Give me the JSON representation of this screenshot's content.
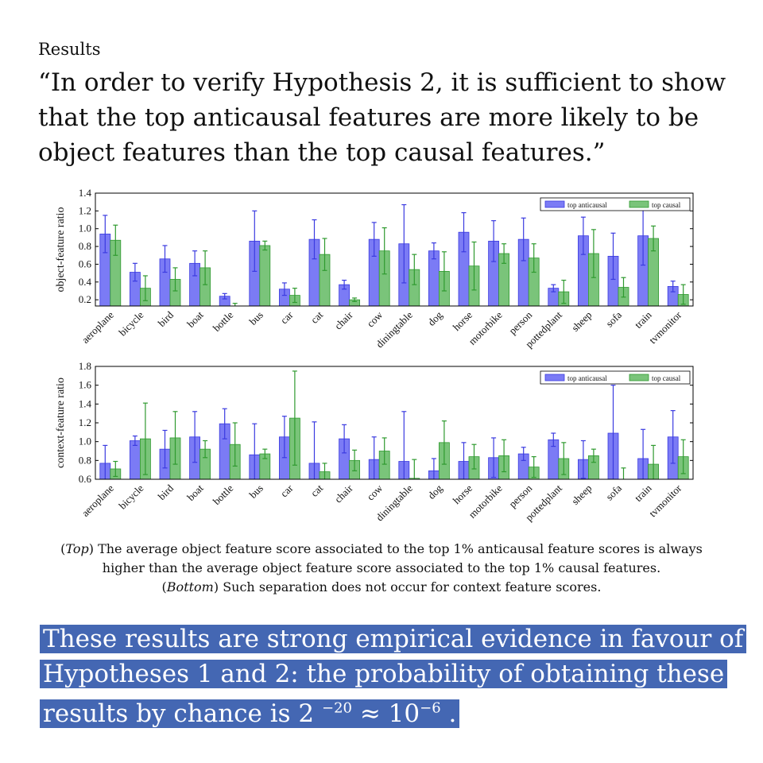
{
  "heading": "Results",
  "quote": [
    "“In order to verify Hypothesis 2, it is sufficient to show",
    "that the top anticausal features are more likely to be",
    "object features than the top causal features.”"
  ],
  "colors": {
    "anticausal": "#7b7bf5",
    "causal": "#7ac47a",
    "anticausal_edge": "#3b3be0",
    "causal_edge": "#2f9a2f",
    "highlight": "#4467b3"
  },
  "chart_data": [
    {
      "type": "bar",
      "ylabel": "object-feature ratio",
      "ylim": [
        0.13,
        1.4
      ],
      "yticks": [
        "1.4",
        "1.2",
        "1.0",
        "0.8",
        "0.6",
        "0.4",
        "0.2"
      ],
      "legend_position": "top-right",
      "categories": [
        "aeroplane",
        "bicycle",
        "bird",
        "boat",
        "bottle",
        "bus",
        "car",
        "cat",
        "chair",
        "cow",
        "diningtable",
        "dog",
        "horse",
        "motorbike",
        "person",
        "pottedplant",
        "sheep",
        "sofa",
        "train",
        "tvmonitor"
      ],
      "series": [
        {
          "name": "top anticausal",
          "values": [
            0.94,
            0.51,
            0.66,
            0.61,
            0.24,
            0.86,
            0.32,
            0.88,
            0.37,
            0.88,
            0.83,
            0.75,
            0.96,
            0.86,
            0.88,
            0.33,
            0.92,
            0.69,
            0.92,
            0.35
          ],
          "err": [
            0.21,
            0.1,
            0.15,
            0.14,
            0.03,
            0.34,
            0.07,
            0.22,
            0.05,
            0.19,
            0.44,
            0.09,
            0.22,
            0.23,
            0.24,
            0.04,
            0.21,
            0.26,
            0.33,
            0.06
          ]
        },
        {
          "name": "top causal",
          "values": [
            0.87,
            0.33,
            0.43,
            0.56,
            0.13,
            0.81,
            0.25,
            0.71,
            0.2,
            0.75,
            0.54,
            0.52,
            0.58,
            0.72,
            0.67,
            0.29,
            0.72,
            0.34,
            0.89,
            0.26
          ],
          "err": [
            0.17,
            0.14,
            0.13,
            0.19,
            0.03,
            0.05,
            0.08,
            0.18,
            0.02,
            0.26,
            0.17,
            0.22,
            0.27,
            0.11,
            0.16,
            0.13,
            0.27,
            0.11,
            0.14,
            0.11
          ]
        }
      ]
    },
    {
      "type": "bar",
      "ylabel": "context-feature ratio",
      "ylim": [
        0.6,
        1.8
      ],
      "yticks": [
        "1.8",
        "1.6",
        "1.4",
        "1.2",
        "1.0",
        "0.8",
        "0.6"
      ],
      "legend_position": "top-right",
      "categories": [
        "aeroplane",
        "bicycle",
        "bird",
        "boat",
        "bottle",
        "bus",
        "car",
        "cat",
        "chair",
        "cow",
        "diningtable",
        "dog",
        "horse",
        "motorbike",
        "person",
        "pottedplant",
        "sheep",
        "sofa",
        "train",
        "tvmonitor"
      ],
      "series": [
        {
          "name": "top anticausal",
          "values": [
            0.77,
            1.01,
            0.92,
            1.05,
            1.19,
            0.86,
            1.05,
            0.77,
            1.03,
            0.81,
            0.79,
            0.69,
            0.79,
            0.83,
            0.87,
            1.02,
            0.81,
            1.09,
            0.82,
            1.05
          ],
          "err": [
            0.19,
            0.05,
            0.2,
            0.27,
            0.16,
            0.33,
            0.22,
            0.44,
            0.15,
            0.24,
            0.53,
            0.13,
            0.2,
            0.21,
            0.07,
            0.07,
            0.2,
            0.51,
            0.31,
            0.28
          ]
        },
        {
          "name": "top causal",
          "values": [
            0.71,
            1.03,
            1.04,
            0.92,
            0.97,
            0.87,
            1.25,
            0.68,
            0.8,
            0.9,
            0.61,
            0.99,
            0.84,
            0.85,
            0.73,
            0.82,
            0.85,
            0.58,
            0.76,
            0.84
          ],
          "err": [
            0.08,
            0.38,
            0.28,
            0.09,
            0.23,
            0.05,
            0.5,
            0.09,
            0.11,
            0.14,
            0.2,
            0.23,
            0.13,
            0.17,
            0.11,
            0.17,
            0.07,
            0.14,
            0.2,
            0.18
          ]
        }
      ]
    }
  ],
  "caption": {
    "top_label": "Top",
    "line1_rest": " The average object feature score associated to the top 1% anticausal feature scores is always",
    "line2": "higher than the average object feature score associated to the top 1% causal features.",
    "bottom_label": "Bottom",
    "line3_rest": " Such separation does not occur for context feature scores."
  },
  "conclusion": {
    "line1": "These results are strong empirical evidence in favour of",
    "line2": "Hypotheses 1 and 2: the probability of obtaining these",
    "line3_pre": "results by chance is 2 ",
    "exp1": "−20",
    "mid": " ≈ 10",
    "exp2": "−6",
    "end": " ."
  }
}
